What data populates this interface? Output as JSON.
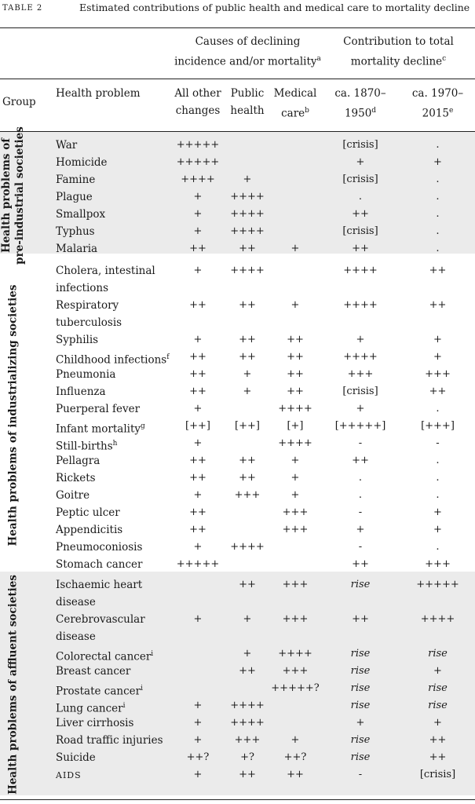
{
  "caption": {
    "label": "TABLE 2",
    "text": "Estimated contributions of public health and medical care to mortality decline"
  },
  "group_headers": {
    "causes": [
      "Causes of declining",
      "incidence and/or mortality"
    ],
    "causes_sup": "a",
    "contribution": [
      "Contribution to total",
      "mortality decline"
    ],
    "contribution_sup": "c"
  },
  "columns": {
    "group": "Group",
    "problem": "Health problem",
    "other": [
      "All other",
      "changes"
    ],
    "public": [
      "Public",
      "health"
    ],
    "medical": [
      "Medical",
      "care"
    ],
    "medical_sup": "b",
    "p1": "ca. 1870–1950",
    "p1_sup": "d",
    "p2": "ca. 1970–2015",
    "p2_sup": "e"
  },
  "groups": [
    {
      "label": [
        "Health problems of",
        "pre-industrial societies"
      ],
      "rows": [
        {
          "name": "War",
          "other": "+++++",
          "public": "",
          "medical": "",
          "p1": "[crisis]",
          "p2": "."
        },
        {
          "name": "Homicide",
          "other": "+++++",
          "public": "",
          "medical": "",
          "p1": "+",
          "p2": "+"
        },
        {
          "name": "Famine",
          "other": "++++",
          "public": "+",
          "medical": "",
          "p1": "[crisis]",
          "p2": "."
        },
        {
          "name": "Plague",
          "other": "+",
          "public": "++++",
          "medical": "",
          "p1": ".",
          "p2": "."
        },
        {
          "name": "Smallpox",
          "other": "+",
          "public": "++++",
          "medical": "",
          "p1": "++",
          "p2": "."
        },
        {
          "name": "Typhus",
          "other": "+",
          "public": "++++",
          "medical": "",
          "p1": "[crisis]",
          "p2": "."
        },
        {
          "name": "Malaria",
          "other": "++",
          "public": "++",
          "medical": "+",
          "p1": "++",
          "p2": "."
        }
      ]
    },
    {
      "label": [
        "Health problems of industrializing societies"
      ],
      "rows": [
        {
          "name": "Cholera, intestinal infections",
          "other": "+",
          "public": "++++",
          "medical": "",
          "p1": "++++",
          "p2": "++"
        },
        {
          "name": "Respiratory tuberculosis",
          "other": "++",
          "public": "++",
          "medical": "+",
          "p1": "++++",
          "p2": "++"
        },
        {
          "name": "Syphilis",
          "other": "+",
          "public": "++",
          "medical": "++",
          "p1": "+",
          "p2": "+"
        },
        {
          "name": "Childhood infections",
          "sup": "f",
          "other": "++",
          "public": "++",
          "medical": "++",
          "p1": "++++",
          "p2": "+"
        },
        {
          "name": "Pneumonia",
          "other": "++",
          "public": "+",
          "medical": "++",
          "p1": "+++",
          "p2": "+++"
        },
        {
          "name": "Influenza",
          "other": "++",
          "public": "+",
          "medical": "++",
          "p1": "[crisis]",
          "p2": "++"
        },
        {
          "name": "Puerperal fever",
          "other": "+",
          "public": "",
          "medical": "++++",
          "p1": "+",
          "p2": "."
        },
        {
          "name": "Infant mortality",
          "sup": "g",
          "other": "[++]",
          "public": "[++]",
          "medical": "[+]",
          "p1": "[+++++]",
          "p2": "[+++]"
        },
        {
          "name": "Still-births",
          "sup": "h",
          "other": "+",
          "public": "",
          "medical": "++++",
          "p1": "-",
          "p2": "-"
        },
        {
          "name": "Pellagra",
          "other": "++",
          "public": "++",
          "medical": "+",
          "p1": "++",
          "p2": "."
        },
        {
          "name": "Rickets",
          "other": "++",
          "public": "++",
          "medical": "+",
          "p1": ".",
          "p2": "."
        },
        {
          "name": "Goitre",
          "other": "+",
          "public": "+++",
          "medical": "+",
          "p1": ".",
          "p2": "."
        },
        {
          "name": "Peptic ulcer",
          "other": "++",
          "public": "",
          "medical": "+++",
          "p1": "-",
          "p2": "+"
        },
        {
          "name": "Appendicitis",
          "other": "++",
          "public": "",
          "medical": "+++",
          "p1": "+",
          "p2": "+"
        },
        {
          "name": "Pneumoconiosis",
          "other": "+",
          "public": "++++",
          "medical": "",
          "p1": "-",
          "p2": "."
        },
        {
          "name": "Stomach cancer",
          "other": "+++++",
          "public": "",
          "medical": "",
          "p1": "++",
          "p2": "+++"
        }
      ]
    },
    {
      "label": [
        "Health problems of affluent societies"
      ],
      "rows": [
        {
          "name": "Ischaemic heart disease",
          "other": "",
          "public": "++",
          "medical": "+++",
          "p1": "rise",
          "p2": "+++++"
        },
        {
          "name": "Cerebrovascular disease",
          "other": "+",
          "public": "+",
          "medical": "+++",
          "p1": "++",
          "p2": "++++"
        },
        {
          "name": "Colorectal cancer",
          "sup": "i",
          "other": "",
          "public": "+",
          "medical": "++++",
          "p1": "rise",
          "p2": "rise"
        },
        {
          "name": "Breast cancer",
          "other": "",
          "public": "++",
          "medical": "+++",
          "p1": "rise",
          "p2": "+"
        },
        {
          "name": "Prostate cancer",
          "sup": "i",
          "other": "",
          "public": "",
          "medical": "+++++?",
          "p1": "rise",
          "p2": "rise"
        },
        {
          "name": "Lung cancer",
          "sup": "i",
          "other": "+",
          "public": "++++",
          "medical": "",
          "p1": "rise",
          "p2": "rise"
        },
        {
          "name": "Liver cirrhosis",
          "other": "+",
          "public": "++++",
          "medical": "",
          "p1": "+",
          "p2": "+"
        },
        {
          "name": "Road traffic injuries",
          "other": "+",
          "public": "+++",
          "medical": "+",
          "p1": "rise",
          "p2": "++"
        },
        {
          "name": "Suicide",
          "other": "++?",
          "public": "+?",
          "medical": "++?",
          "p1": "rise",
          "p2": "++"
        },
        {
          "name": "AIDS",
          "other": "+",
          "public": "++",
          "medical": "++",
          "p1": "-",
          "p2": "[crisis]"
        }
      ]
    }
  ]
}
